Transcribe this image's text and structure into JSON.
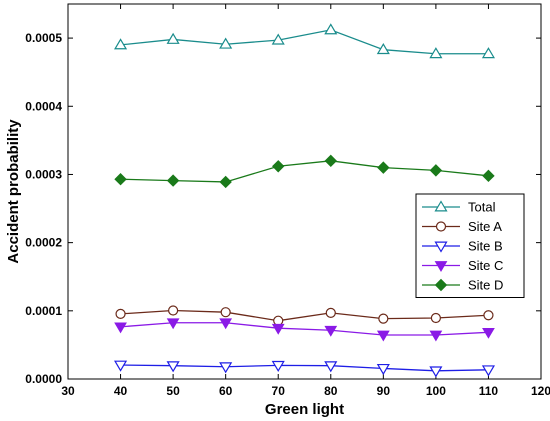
{
  "chart_data": {
    "type": "line",
    "title": "",
    "xlabel": "Green light",
    "ylabel": "Accident probability",
    "xlim": [
      30,
      120
    ],
    "ylim": [
      0,
      0.00055
    ],
    "x_ticks": [
      30,
      40,
      50,
      60,
      70,
      80,
      90,
      100,
      110,
      120
    ],
    "y_ticks": [
      0.0,
      0.0001,
      0.0002,
      0.0003,
      0.0004,
      0.0005
    ],
    "y_tick_labels": [
      "0.0000",
      "0.0001",
      "0.0002",
      "0.0003",
      "0.0004",
      "0.0005"
    ],
    "x_tick_labels": [
      "30",
      "40",
      "50",
      "60",
      "70",
      "80",
      "90",
      "100",
      "110",
      "120"
    ],
    "grid": false,
    "legend_position": "right",
    "x": [
      40,
      50,
      60,
      70,
      80,
      90,
      100,
      110
    ],
    "series": [
      {
        "name": "Total",
        "color": "#1a8c8c",
        "marker": "triangle-up-open",
        "values": [
          0.00049,
          0.000498,
          0.000491,
          0.000497,
          0.000512,
          0.000483,
          0.000477,
          0.000477
        ]
      },
      {
        "name": "Site A",
        "color": "#6b2a1a",
        "marker": "circle-open",
        "values": [
          9.55e-05,
          0.0001005,
          9.8e-05,
          8.55e-05,
          9.7e-05,
          8.85e-05,
          8.95e-05,
          9.35e-05
        ]
      },
      {
        "name": "Site B",
        "color": "#1e1ee6",
        "marker": "triangle-down-open",
        "values": [
          2.05e-05,
          1.95e-05,
          1.8e-05,
          2e-05,
          1.95e-05,
          1.55e-05,
          1.2e-05,
          1.35e-05
        ]
      },
      {
        "name": "Site C",
        "color": "#8a1ae6",
        "marker": "triangle-down-filled",
        "values": [
          7.65e-05,
          8.25e-05,
          8.25e-05,
          7.45e-05,
          7.15e-05,
          6.45e-05,
          6.45e-05,
          6.85e-05
        ]
      },
      {
        "name": "Site D",
        "color": "#1a7a1a",
        "marker": "diamond-filled",
        "values": [
          0.000293,
          0.000291,
          0.000289,
          0.000312,
          0.00032,
          0.00031,
          0.000306,
          0.000298
        ]
      }
    ]
  }
}
